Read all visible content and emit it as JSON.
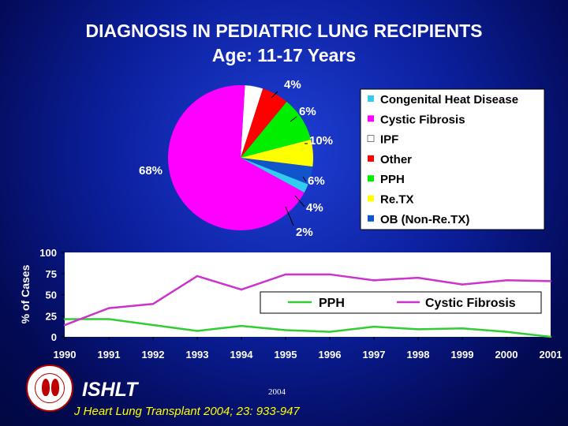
{
  "title": {
    "line1": "DIAGNOSIS IN PEDIATRIC LUNG RECIPIENTS",
    "line2": "Age: 11-17 Years"
  },
  "colors": {
    "congenital": "#33ccee",
    "cf": "#ff00ff",
    "ipf": "#ffffff",
    "other": "#ff0000",
    "pph": "#00ee00",
    "retx": "#ffff00",
    "ob": "#1155cc",
    "pph_line": "#33cc33",
    "cf_line": "#cc33cc"
  },
  "chart_data": [
    {
      "type": "pie",
      "slices": [
        {
          "label": "IPF",
          "value": 4,
          "text": "4%",
          "color": "#ffffff"
        },
        {
          "label": "Other",
          "value": 6,
          "text": "6%",
          "color": "#ff0000"
        },
        {
          "label": "PPH",
          "value": 10,
          "text": "10%",
          "color": "#00ee00"
        },
        {
          "label": "Re.TX",
          "value": 6,
          "text": "6%",
          "color": "#ffff00"
        },
        {
          "label": "OB (Non-Re.TX)",
          "value": 4,
          "text": "4%",
          "color": "#1155cc"
        },
        {
          "label": "Congenital Heat Disease",
          "value": 2,
          "text": "2%",
          "color": "#33ccee"
        },
        {
          "label": "Cystic Fibrosis",
          "value": 68,
          "text": "68%",
          "color": "#ff00ff"
        }
      ],
      "legend": [
        {
          "label": "Congenital Heat Disease",
          "color": "#33ccee"
        },
        {
          "label": "Cystic Fibrosis",
          "color": "#ff00ff"
        },
        {
          "label": "IPF",
          "color": "#ffffff"
        },
        {
          "label": "Other",
          "color": "#ff0000"
        },
        {
          "label": "PPH",
          "color": "#00ee00"
        },
        {
          "label": "Re.TX",
          "color": "#ffff00"
        },
        {
          "label": "OB (Non-Re.TX)",
          "color": "#1155cc"
        }
      ],
      "legend_position": "right"
    },
    {
      "type": "line",
      "x": [
        "1990",
        "1991",
        "1992",
        "1993",
        "1994",
        "1995",
        "1996",
        "1997",
        "1998",
        "1999",
        "2000",
        "2001"
      ],
      "series": [
        {
          "name": "PPH",
          "values": [
            21,
            21,
            14,
            7,
            13,
            8,
            6,
            12,
            9,
            10,
            6,
            0
          ],
          "color": "#33cc33"
        },
        {
          "name": "Cystic Fibrosis",
          "values": [
            14,
            34,
            39,
            72,
            56,
            74,
            74,
            67,
            70,
            62,
            67,
            66
          ],
          "color": "#cc33cc"
        }
      ],
      "ylabel": "% of Cases",
      "ylim": [
        0,
        100
      ],
      "yticks": [
        "0",
        "25",
        "50",
        "75",
        "100"
      ],
      "grid": false,
      "legend_position": "inside-right"
    }
  ],
  "footer": {
    "org": "ISHLT",
    "year": "2004",
    "citation": "J Heart Lung Transplant 2004; 23: 933-947"
  }
}
